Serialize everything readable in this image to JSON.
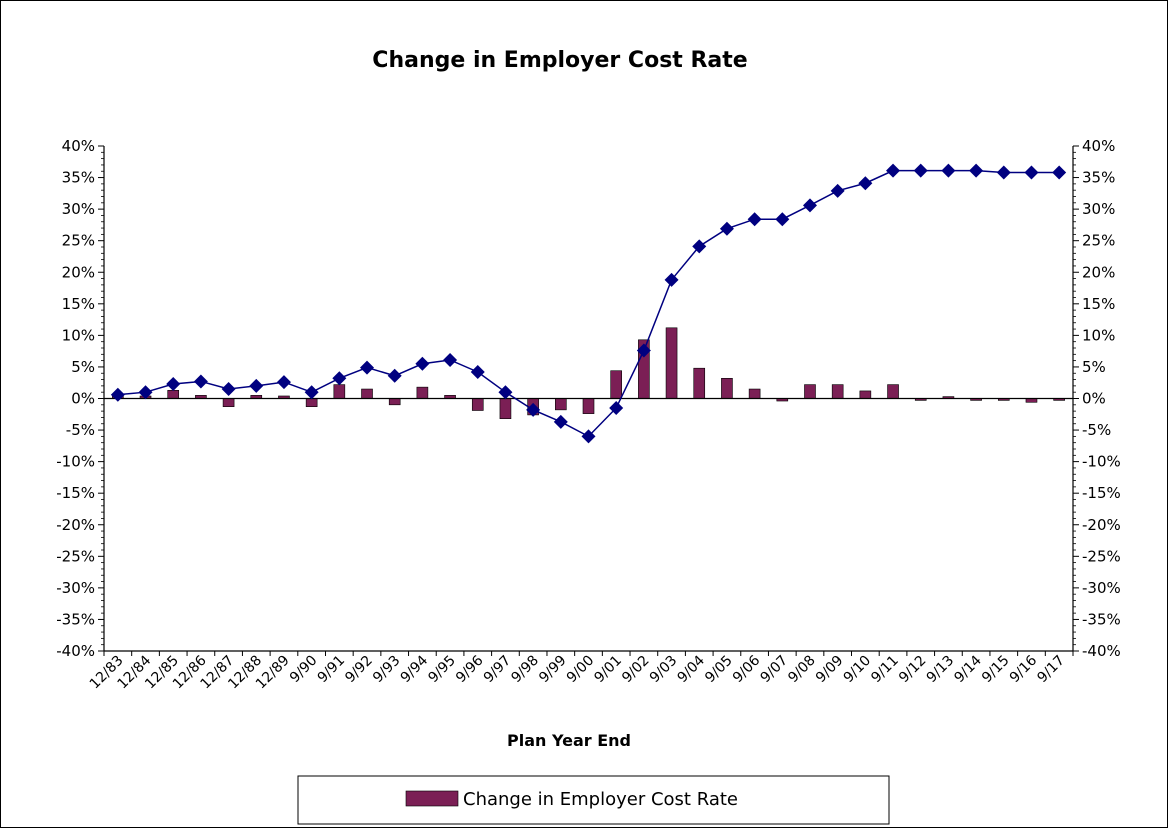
{
  "chart_data": {
    "type": "bar",
    "title": "Change in Employer Cost Rate",
    "xlabel": "Plan Year End",
    "ylabel": "",
    "ylim": [
      -40,
      40
    ],
    "ytick_step": 5,
    "ytick_suffix": "%",
    "secondary_axis": true,
    "legend_position": "bottom",
    "categories": [
      "12/83",
      "12/84",
      "12/85",
      "12/86",
      "12/87",
      "12/88",
      "12/89",
      "9/90",
      "9/91",
      "9/92",
      "9/93",
      "9/94",
      "9/95",
      "9/96",
      "9/97",
      "9/98",
      "9/99",
      "9/00",
      "9/01",
      "9/02",
      "9/03",
      "9/04",
      "9/05",
      "9/06",
      "9/07",
      "9/08",
      "9/09",
      "9/10",
      "9/11",
      "9/12",
      "9/13",
      "9/14",
      "9/15",
      "9/16",
      "9/17"
    ],
    "series": [
      {
        "name": "Change in Employer Cost Rate",
        "kind": "bar",
        "color": "#7B1F55",
        "values": [
          0.6,
          0.4,
          1.3,
          0.5,
          -1.3,
          0.5,
          0.4,
          -1.3,
          2.2,
          1.5,
          -1.0,
          1.8,
          0.5,
          -1.9,
          -3.2,
          -2.6,
          -1.8,
          -2.4,
          4.4,
          9.3,
          11.2,
          4.8,
          3.2,
          1.5,
          -0.4,
          2.2,
          2.2,
          1.2,
          2.2,
          -0.3,
          0.3,
          -0.3,
          -0.3,
          -0.6,
          -0.3
        ]
      },
      {
        "kind": "line",
        "color": "#000080",
        "values": [
          0.6,
          1.0,
          2.3,
          2.7,
          1.5,
          2.0,
          2.6,
          1.0,
          3.2,
          4.9,
          3.6,
          5.5,
          6.1,
          4.2,
          1.0,
          -1.8,
          -3.7,
          -6.0,
          -1.5,
          7.6,
          18.8,
          24.1,
          26.9,
          28.4,
          28.4,
          30.6,
          32.9,
          34.1,
          36.1,
          36.1,
          36.1,
          36.1,
          35.8,
          35.8,
          35.8
        ]
      }
    ]
  }
}
